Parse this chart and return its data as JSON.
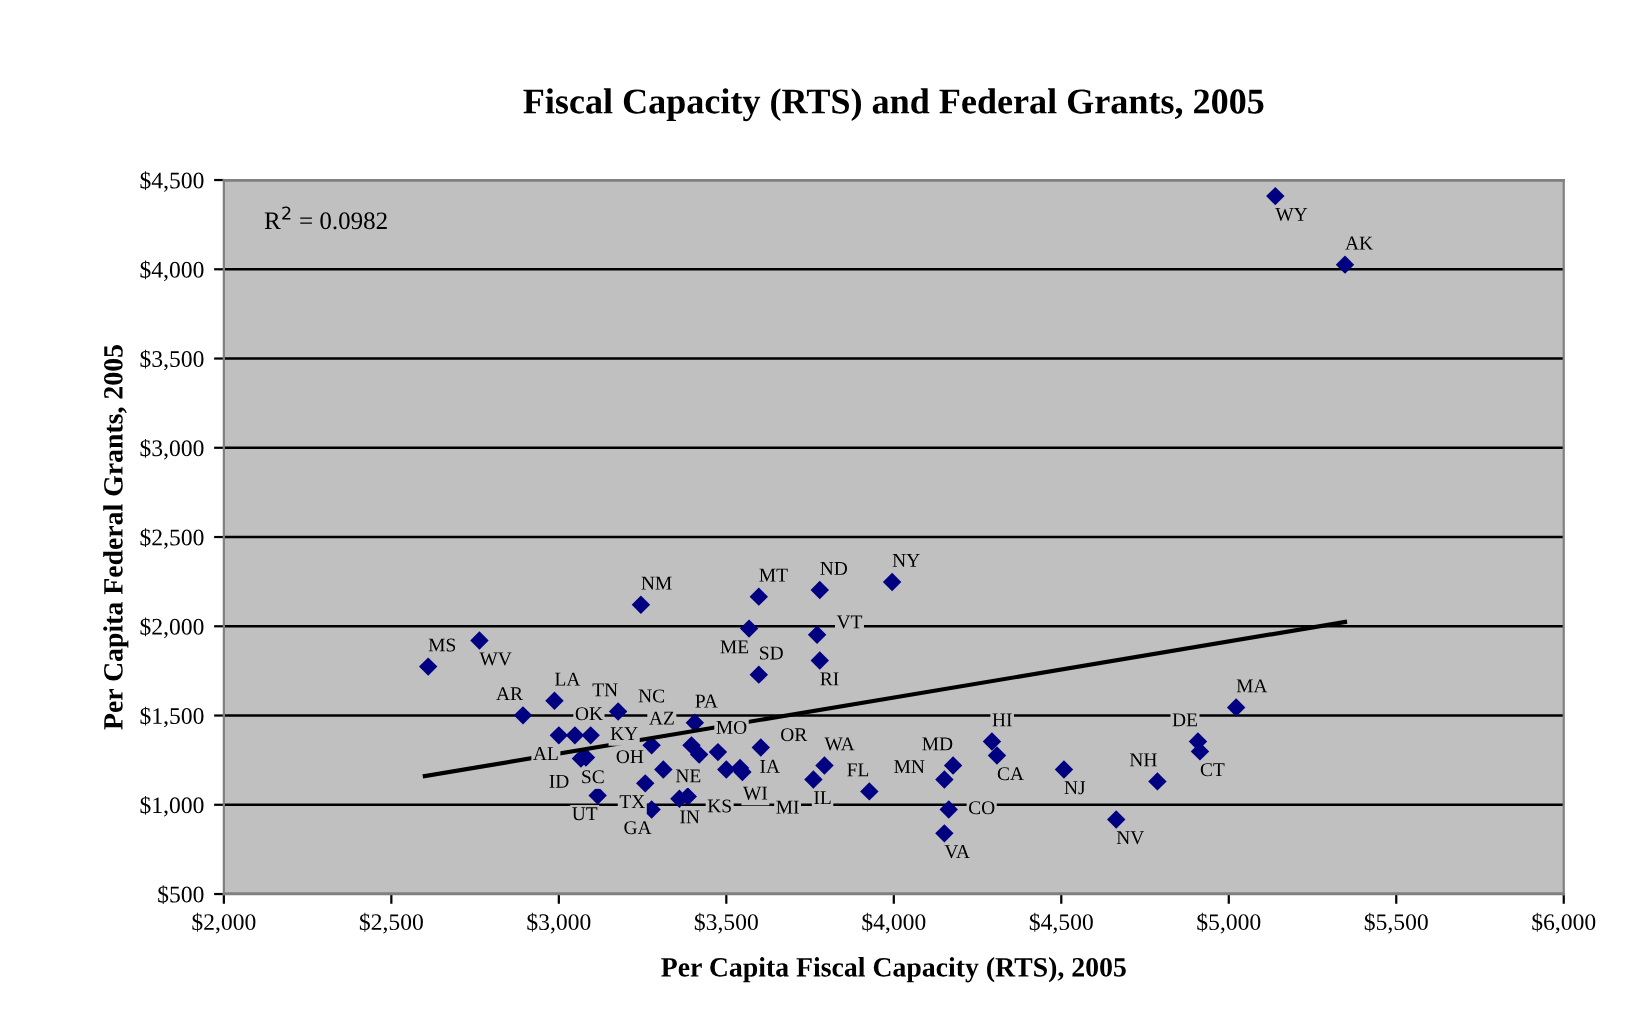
{
  "chart_data": {
    "type": "scatter",
    "title": "Fiscal Capacity (RTS) and Federal Grants, 2005",
    "xlabel": "Per Capita Fiscal Capacity (RTS), 2005",
    "ylabel": "Per Capita Federal Grants, 2005",
    "annotations": [
      "R$^{2}$ = 0.0982"
    ],
    "series": [
      {
        "color": "#000080",
        "marker": "diamond",
        "x": [
          3245,
          3597,
          3779,
          3995,
          3568,
          3771,
          3779,
          3597,
          2763,
          2610,
          2987,
          2893,
          3177,
          3406,
          3000,
          3048,
          3095,
          3066,
          3081,
          3277,
          3396,
          3419,
          3475,
          3603,
          3312,
          3500,
          3541,
          3548,
          3116,
          3258,
          3277,
          3360,
          3385,
          3793,
          3760,
          3927,
          5022,
          4293,
          4308,
          4177,
          4151,
          4164,
          4151,
          4508,
          4664,
          4787,
          4908,
          4914,
          5139,
          5347
        ],
        "values": [
          2121,
          2166,
          2203,
          2248,
          1987,
          1953,
          1808,
          1729,
          1920,
          1774,
          1583,
          1501,
          1523,
          1460,
          1389,
          1389,
          1389,
          1259,
          1265,
          1333,
          1333,
          1281,
          1295,
          1321,
          1198,
          1198,
          1206,
          1183,
          1052,
          1120,
          974,
          1034,
          1046,
          1220,
          1142,
          1075,
          1545,
          1355,
          1276,
          1220,
          1142,
          974,
          840,
          1198,
          918,
          1131,
          1355,
          1299,
          4410,
          4026
        ],
        "value_labels": [
          "NM",
          "MT",
          "ND",
          "NY",
          "ME",
          "VT",
          "RI",
          "SD",
          "WV",
          "MS",
          "LA",
          "AR",
          "TN",
          "PA",
          "AL",
          "OK",
          "KY",
          "SC",
          "ID",
          "NC",
          "AZ",
          "MO",
          "NE",
          "OR",
          "OH",
          "WI",
          "IA",
          "MI",
          "UT",
          "TX",
          "GA",
          "IN",
          "KS",
          "WA",
          "IL",
          "FL",
          "MA",
          "HI",
          "CA",
          "MD",
          "MN",
          "CO",
          "VA",
          "NJ",
          "NV",
          "NH",
          "DE",
          "CT",
          "WY",
          "AK"
        ]
      },
      {
        "type": "line",
        "color": "#000000",
        "marker": "none",
        "line_style": "solid",
        "x": [
          2600,
          5347
        ],
        "values": [
          1161,
          2024
        ]
      }
    ],
    "xlim": [
      2000,
      6000
    ],
    "xticks": [
      {
        "value": 2000,
        "label": "$2,000"
      },
      {
        "value": 2500,
        "label": "$2,500"
      },
      {
        "value": 3000,
        "label": "$3,000"
      },
      {
        "value": 3500,
        "label": "$3,500"
      },
      {
        "value": 4000,
        "label": "$4,000"
      },
      {
        "value": 4500,
        "label": "$4,500"
      },
      {
        "value": 5000,
        "label": "$5,000"
      },
      {
        "value": 5500,
        "label": "$5,500"
      },
      {
        "value": 6000,
        "label": "$6,000"
      }
    ],
    "ylim": [
      500,
      4500
    ],
    "yticks": [
      {
        "value": 500,
        "label": "$500"
      },
      {
        "value": 1000,
        "label": "$1,000"
      },
      {
        "value": 1500,
        "label": "$1,500"
      },
      {
        "value": 2000,
        "label": "$2,000"
      },
      {
        "value": 2500,
        "label": "$2,500"
      },
      {
        "value": 3000,
        "label": "$3,000"
      },
      {
        "value": 3500,
        "label": "$3,500"
      },
      {
        "value": 4000,
        "label": "$4,000"
      },
      {
        "value": 4500,
        "label": "$4,500"
      }
    ],
    "grid": "y",
    "legend": false
  }
}
